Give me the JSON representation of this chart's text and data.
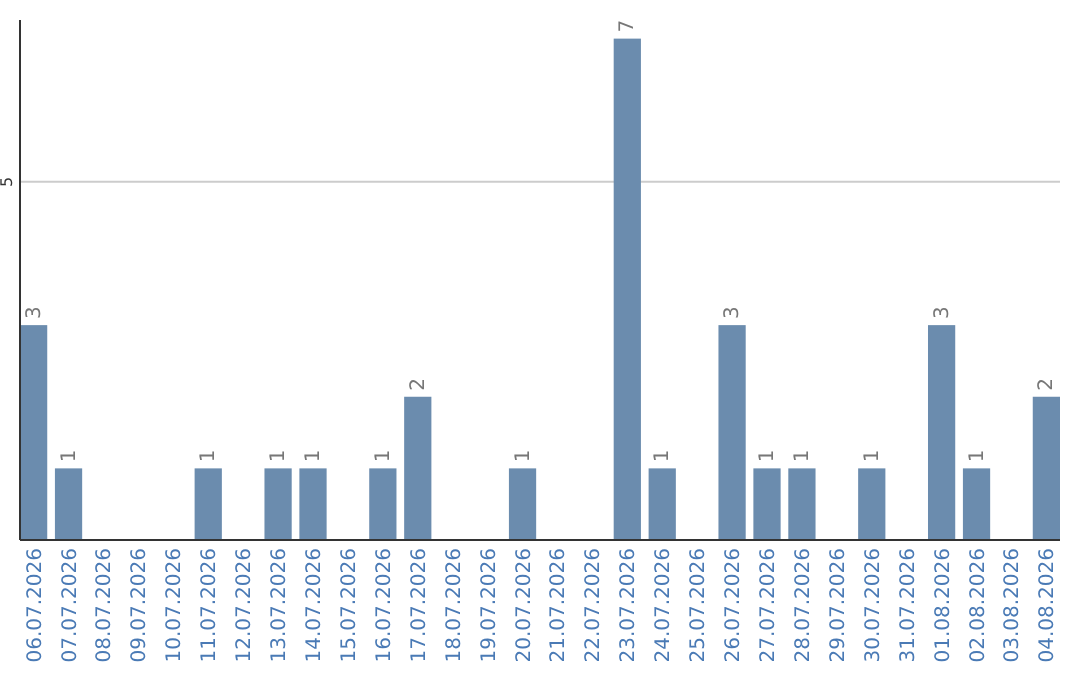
{
  "chart_data": {
    "type": "bar",
    "categories": [
      "06.07.2026",
      "07.07.2026",
      "08.07.2026",
      "09.07.2026",
      "10.07.2026",
      "11.07.2026",
      "12.07.2026",
      "13.07.2026",
      "14.07.2026",
      "15.07.2026",
      "16.07.2026",
      "17.07.2026",
      "18.07.2026",
      "19.07.2026",
      "20.07.2026",
      "21.07.2026",
      "22.07.2026",
      "23.07.2026",
      "24.07.2026",
      "25.07.2026",
      "26.07.2026",
      "27.07.2026",
      "28.07.2026",
      "29.07.2026",
      "30.07.2026",
      "31.07.2026",
      "01.08.2026",
      "02.08.2026",
      "03.08.2026",
      "04.08.2026"
    ],
    "values": [
      3,
      1,
      0,
      0,
      0,
      1,
      0,
      1,
      1,
      0,
      1,
      2,
      0,
      0,
      1,
      0,
      0,
      7,
      1,
      0,
      3,
      1,
      1,
      0,
      1,
      0,
      3,
      1,
      0,
      2
    ],
    "value_labels": [
      "3",
      "1",
      null,
      null,
      null,
      "1",
      null,
      "1",
      "1",
      null,
      "1",
      "2",
      null,
      null,
      "1",
      null,
      null,
      "7",
      "1",
      null,
      "3",
      "1",
      "1",
      null,
      "1",
      null,
      "3",
      "1",
      null,
      "2"
    ],
    "color": "#6b8cae",
    "ylim": [
      0,
      7.26
    ],
    "yticks": [
      5
    ],
    "grid": "y"
  }
}
